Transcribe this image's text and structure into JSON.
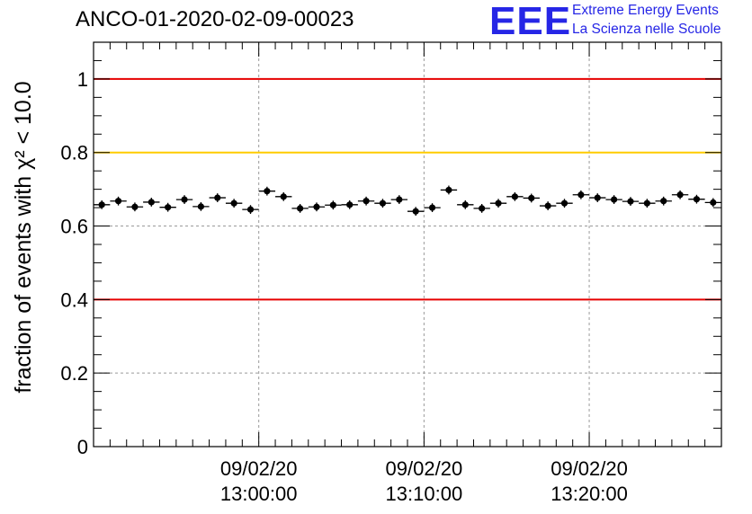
{
  "header": {
    "title": "ANCO-01-2020-02-09-00023",
    "logo_text": "EEE",
    "logo_line1": "Extreme Energy Events",
    "logo_line2": "La Scienza nelle Scuole"
  },
  "chart_data": {
    "type": "scatter",
    "title": "ANCO-01-2020-02-09-00023",
    "ylabel": "fraction of events with χ² < 10.0",
    "xlabel": "",
    "ylim": [
      0,
      1.1
    ],
    "yticks": [
      0,
      0.2,
      0.4,
      0.6,
      0.8,
      1
    ],
    "ytick_labels": [
      "0",
      "0.2",
      "0.4",
      "0.6",
      "0.8",
      "1"
    ],
    "x_start_min": -10,
    "x_end_min": 28,
    "bin_width_min": 1,
    "xticks_min": [
      0,
      10,
      20
    ],
    "xtick_labels": [
      {
        "date": "09/02/20",
        "time": "13:00:00"
      },
      {
        "date": "09/02/20",
        "time": "13:10:00"
      },
      {
        "date": "09/02/20",
        "time": "13:20:00"
      }
    ],
    "grid": true,
    "reference_lines": [
      {
        "y": 1.0,
        "color": "#e60000"
      },
      {
        "y": 0.8,
        "color": "#ffcc00"
      },
      {
        "y": 0.4,
        "color": "#e60000"
      }
    ],
    "series": [
      {
        "values": [
          0.658,
          0.668,
          0.652,
          0.665,
          0.651,
          0.672,
          0.653,
          0.677,
          0.662,
          0.645,
          0.695,
          0.68,
          0.648,
          0.652,
          0.657,
          0.658,
          0.668,
          0.662,
          0.672,
          0.64,
          0.65,
          0.698,
          0.658,
          0.648,
          0.662,
          0.68,
          0.676,
          0.655,
          0.662,
          0.685,
          0.677,
          0.672,
          0.667,
          0.662,
          0.668,
          0.685,
          0.673,
          0.664
        ],
        "errors": [
          0.012,
          0.012,
          0.012,
          0.012,
          0.012,
          0.012,
          0.012,
          0.012,
          0.012,
          0.012,
          0.012,
          0.012,
          0.012,
          0.012,
          0.012,
          0.012,
          0.012,
          0.012,
          0.012,
          0.012,
          0.012,
          0.012,
          0.012,
          0.012,
          0.012,
          0.012,
          0.012,
          0.012,
          0.012,
          0.012,
          0.012,
          0.012,
          0.012,
          0.012,
          0.012,
          0.012,
          0.012,
          0.012
        ]
      }
    ]
  }
}
